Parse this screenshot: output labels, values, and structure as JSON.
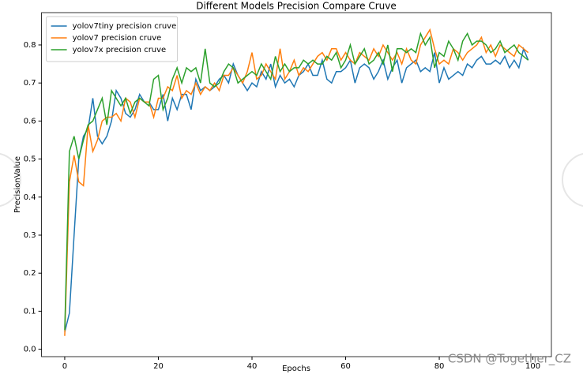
{
  "chart_data": {
    "type": "line",
    "title": "Different Models Precision Compare Cruve",
    "x_label": "Epochs",
    "y_label": "PrecisionValue",
    "watermark": "CSDN @Together_CZ",
    "legend": "upper left",
    "x": [
      0,
      1,
      2,
      3,
      4,
      5,
      6,
      7,
      8,
      9,
      10,
      11,
      12,
      13,
      14,
      15,
      16,
      17,
      18,
      19,
      20,
      21,
      22,
      23,
      24,
      25,
      26,
      27,
      28,
      29,
      30,
      31,
      32,
      33,
      34,
      35,
      36,
      37,
      38,
      39,
      40,
      41,
      42,
      43,
      44,
      45,
      46,
      47,
      48,
      49,
      50,
      51,
      52,
      53,
      54,
      55,
      56,
      57,
      58,
      59,
      60,
      61,
      62,
      63,
      64,
      65,
      66,
      67,
      68,
      69,
      70,
      71,
      72,
      73,
      74,
      75,
      76,
      77,
      78,
      79,
      80,
      81,
      82,
      83,
      84,
      85,
      86,
      87,
      88,
      89,
      90,
      91,
      92,
      93,
      94,
      95,
      96,
      97,
      98,
      99
    ],
    "xlim": [
      -4.95,
      103.95
    ],
    "xticks": [
      0,
      20,
      40,
      60,
      80,
      100
    ],
    "ylim": [
      -0.0195,
      0.885
    ],
    "yticks": [
      {
        "value": 0,
        "label": "0.0"
      },
      0.1,
      0.2,
      0.3,
      0.4,
      0.5,
      0.6,
      0.7,
      0.8
    ],
    "series": [
      {
        "name": "yolov7tiny precision cruve",
        "color": "#1f77b4",
        "values": [
          0.045,
          0.095,
          0.3,
          0.5,
          0.56,
          0.58,
          0.66,
          0.56,
          0.54,
          0.56,
          0.6,
          0.68,
          0.66,
          0.62,
          0.61,
          0.63,
          0.67,
          0.65,
          0.65,
          0.63,
          0.63,
          0.67,
          0.6,
          0.66,
          0.63,
          0.67,
          0.67,
          0.63,
          0.71,
          0.68,
          0.69,
          0.68,
          0.69,
          0.71,
          0.72,
          0.7,
          0.75,
          0.72,
          0.7,
          0.68,
          0.7,
          0.69,
          0.73,
          0.71,
          0.75,
          0.69,
          0.72,
          0.7,
          0.71,
          0.69,
          0.72,
          0.73,
          0.75,
          0.72,
          0.72,
          0.76,
          0.71,
          0.7,
          0.73,
          0.73,
          0.74,
          0.76,
          0.7,
          0.74,
          0.75,
          0.74,
          0.71,
          0.73,
          0.76,
          0.71,
          0.74,
          0.76,
          0.7,
          0.74,
          0.75,
          0.76,
          0.73,
          0.74,
          0.73,
          0.78,
          0.7,
          0.74,
          0.71,
          0.72,
          0.73,
          0.72,
          0.75,
          0.74,
          0.76,
          0.77,
          0.75,
          0.75,
          0.76,
          0.75,
          0.77,
          0.74,
          0.76,
          0.74,
          0.79,
          0.76
        ]
      },
      {
        "name": "yolov7 precision cruve",
        "color": "#ff7f0e",
        "values": [
          0.035,
          0.44,
          0.51,
          0.44,
          0.43,
          0.59,
          0.52,
          0.55,
          0.6,
          0.61,
          0.61,
          0.62,
          0.6,
          0.66,
          0.65,
          0.61,
          0.66,
          0.65,
          0.65,
          0.61,
          0.66,
          0.66,
          0.69,
          0.68,
          0.72,
          0.66,
          0.68,
          0.67,
          0.7,
          0.67,
          0.69,
          0.68,
          0.7,
          0.68,
          0.72,
          0.72,
          0.74,
          0.72,
          0.7,
          0.73,
          0.78,
          0.71,
          0.72,
          0.75,
          0.73,
          0.71,
          0.79,
          0.71,
          0.73,
          0.76,
          0.72,
          0.74,
          0.73,
          0.75,
          0.77,
          0.78,
          0.76,
          0.79,
          0.79,
          0.76,
          0.78,
          0.76,
          0.75,
          0.78,
          0.77,
          0.76,
          0.79,
          0.77,
          0.8,
          0.78,
          0.76,
          0.78,
          0.75,
          0.79,
          0.76,
          0.75,
          0.8,
          0.82,
          0.84,
          0.79,
          0.75,
          0.76,
          0.75,
          0.79,
          0.78,
          0.76,
          0.78,
          0.79,
          0.8,
          0.82,
          0.78,
          0.8,
          0.77,
          0.8,
          0.79,
          0.78,
          0.77,
          0.8,
          0.79,
          0.78
        ]
      },
      {
        "name": "yolov7x precision cruve",
        "color": "#2ca02c",
        "values": [
          0.05,
          0.52,
          0.56,
          0.5,
          0.55,
          0.59,
          0.6,
          0.63,
          0.66,
          0.59,
          0.68,
          0.66,
          0.64,
          0.66,
          0.62,
          0.65,
          0.66,
          0.65,
          0.64,
          0.71,
          0.72,
          0.63,
          0.66,
          0.71,
          0.74,
          0.7,
          0.74,
          0.73,
          0.74,
          0.7,
          0.79,
          0.7,
          0.69,
          0.7,
          0.73,
          0.75,
          0.74,
          0.7,
          0.71,
          0.72,
          0.73,
          0.72,
          0.75,
          0.73,
          0.71,
          0.77,
          0.73,
          0.75,
          0.73,
          0.74,
          0.74,
          0.76,
          0.75,
          0.76,
          0.75,
          0.75,
          0.77,
          0.76,
          0.78,
          0.74,
          0.76,
          0.8,
          0.75,
          0.77,
          0.79,
          0.75,
          0.76,
          0.78,
          0.75,
          0.8,
          0.73,
          0.79,
          0.79,
          0.78,
          0.79,
          0.78,
          0.83,
          0.8,
          0.82,
          0.74,
          0.78,
          0.77,
          0.81,
          0.79,
          0.76,
          0.81,
          0.83,
          0.8,
          0.81,
          0.81,
          0.8,
          0.78,
          0.79,
          0.81,
          0.78,
          0.79,
          0.8,
          0.78,
          0.77,
          0.76
        ]
      }
    ]
  }
}
